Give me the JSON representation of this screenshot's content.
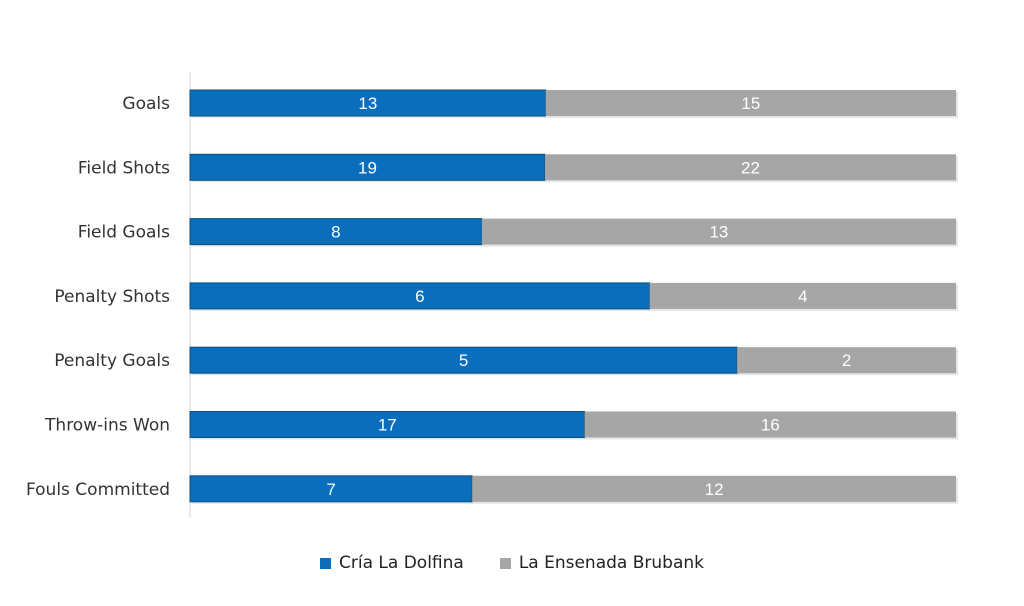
{
  "chart_data": {
    "type": "bar",
    "orientation": "horizontal",
    "stacked": "100%",
    "categories": [
      "Goals",
      "Field Shots",
      "Field Goals",
      "Penalty Shots",
      "Penalty Goals",
      "Throw-ins Won",
      "Fouls Committed"
    ],
    "series": [
      {
        "name": "Cría La Dolfina",
        "values": [
          13,
          19,
          8,
          6,
          5,
          17,
          7
        ],
        "color": "#0a6ebd"
      },
      {
        "name": "La Ensenada Brubank",
        "values": [
          15,
          22,
          13,
          4,
          2,
          16,
          12
        ],
        "color": "#a6a6a6"
      }
    ],
    "title": "",
    "xlabel": "",
    "ylabel": "",
    "legend_position": "bottom",
    "grid": false
  }
}
